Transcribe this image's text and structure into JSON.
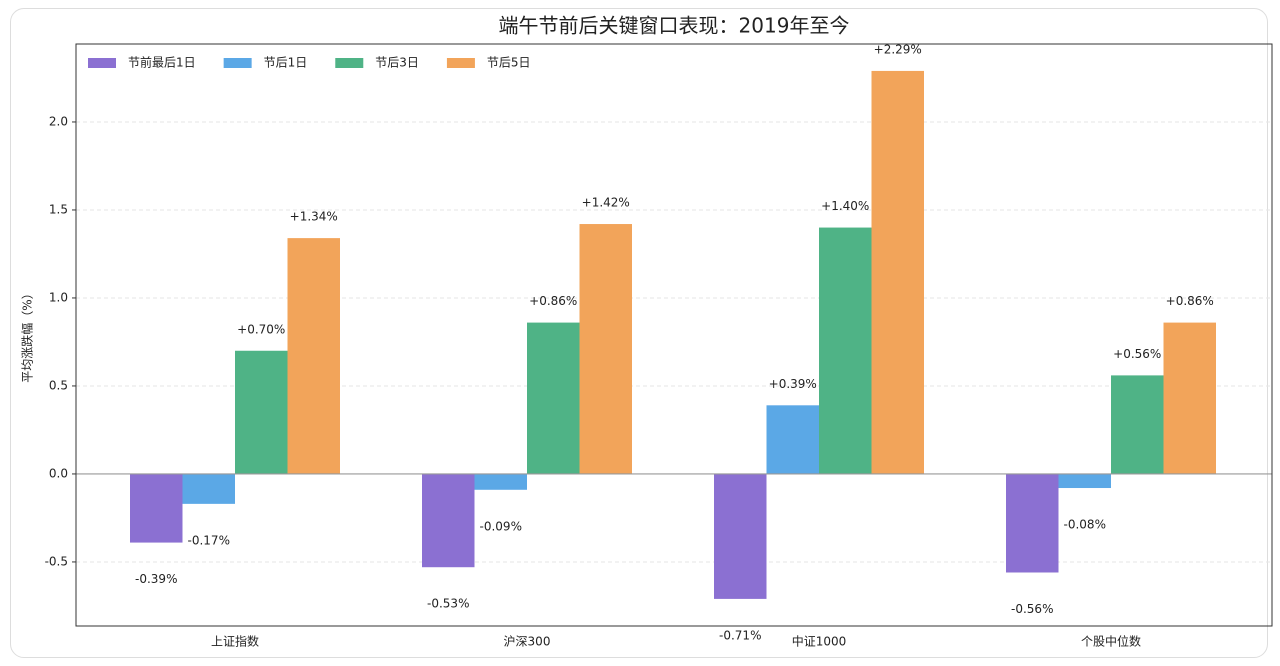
{
  "chart_data": {
    "type": "bar",
    "title": "端午节前后关键窗口表现：2019年至今",
    "ylabel": "平均涨跌幅（%）",
    "categories": [
      "上证指数",
      "沪深300",
      "中证1000",
      "个股中位数"
    ],
    "series": [
      {
        "name": "节前最后1日",
        "color": "#8b70d2",
        "values": [
          -0.39,
          -0.53,
          -0.71,
          -0.56
        ],
        "value_labels": [
          "-0.39%",
          "-0.53%",
          "-0.71%",
          "-0.56%"
        ]
      },
      {
        "name": "节后1日",
        "color": "#5ba8e6",
        "values": [
          -0.17,
          -0.09,
          0.39,
          -0.08
        ],
        "value_labels": [
          "-0.17%",
          "-0.09%",
          "+0.39%",
          "-0.08%"
        ]
      },
      {
        "name": "节后3日",
        "color": "#4fb386",
        "values": [
          0.7,
          0.86,
          1.4,
          0.56
        ],
        "value_labels": [
          "+0.70%",
          "+0.86%",
          "+1.40%",
          "+0.56%"
        ]
      },
      {
        "name": "节后5日",
        "color": "#f2a45a",
        "values": [
          1.34,
          1.42,
          2.29,
          0.86
        ],
        "value_labels": [
          "+1.34%",
          "+1.42%",
          "+2.29%",
          "+0.86%"
        ]
      }
    ],
    "ylim": [
      -0.864,
      2.443
    ],
    "yticks": [
      -0.5,
      {
        "value": 0,
        "label": "0.0"
      },
      0.5,
      {
        "value": 1,
        "label": "1.0"
      },
      1.5,
      {
        "value": 2,
        "label": "2.0"
      }
    ],
    "grid": true,
    "legend": "upper left"
  }
}
